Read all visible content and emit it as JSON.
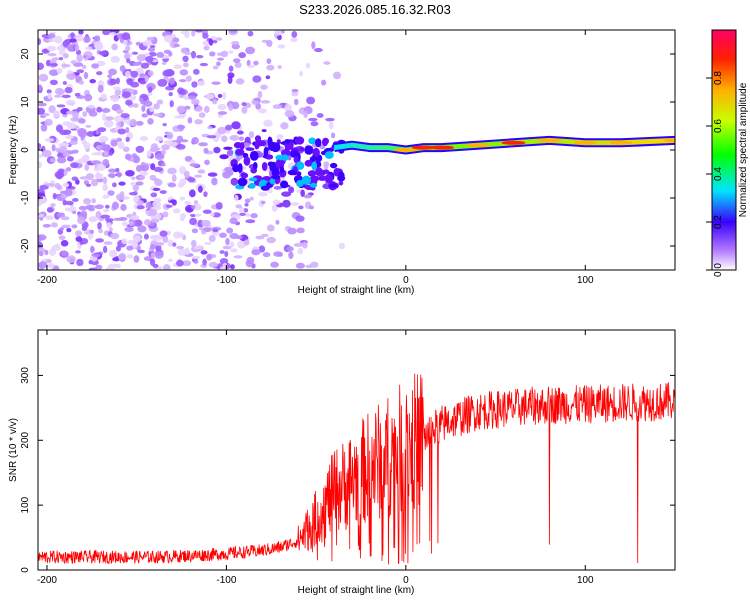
{
  "chart_data": [
    {
      "type": "heatmap",
      "title": "S233.2026.085.16.32.R03",
      "xlabel": "Height of straight line (km)",
      "ylabel": "Frequency (Hz)",
      "xlim": [
        -205,
        150
      ],
      "ylim": [
        -25,
        25
      ],
      "xticks": [
        -200,
        -100,
        0,
        100
      ],
      "yticks": [
        -20,
        -10,
        0,
        10,
        20
      ],
      "grid": false,
      "colorbar": {
        "label": "Normalized spectral amplitude",
        "range": [
          0,
          1
        ],
        "ticks": [
          0.0,
          0.2,
          0.4,
          0.6,
          0.8
        ]
      },
      "description_points": {
        "ridge_x": [
          -40,
          -30,
          -20,
          -10,
          0,
          10,
          20,
          40,
          60,
          80,
          100,
          120,
          150
        ],
        "ridge_freq": [
          0.5,
          1,
          0.5,
          0.5,
          0,
          0.5,
          0.5,
          1,
          1.5,
          2,
          1.5,
          1.5,
          2
        ],
        "ridge_amplitude": [
          0.4,
          0.55,
          0.6,
          0.65,
          0.8,
          0.85,
          0.9,
          0.75,
          0.85,
          0.8,
          0.7,
          0.75,
          0.7
        ]
      }
    },
    {
      "type": "line",
      "title": "",
      "xlabel": "Height of straight line (km)",
      "ylabel": "SNR (10 * v/v)",
      "xlim": [
        -205,
        150
      ],
      "ylim": [
        0,
        370
      ],
      "xticks": [
        -200,
        -100,
        0,
        100
      ],
      "yticks": [
        0,
        100,
        200,
        300
      ],
      "series": [
        {
          "name": "SNR",
          "color": "#ff0000",
          "x": [
            -205,
            -180,
            -160,
            -140,
            -120,
            -100,
            -80,
            -70,
            -60,
            -50,
            -40,
            -30,
            -20,
            -10,
            0,
            10,
            20,
            30,
            40,
            60,
            80,
            100,
            120,
            150
          ],
          "y": [
            20,
            20,
            20,
            20,
            22,
            25,
            30,
            35,
            45,
            80,
            120,
            140,
            160,
            175,
            190,
            205,
            225,
            235,
            245,
            250,
            255,
            255,
            258,
            260
          ]
        }
      ]
    }
  ]
}
